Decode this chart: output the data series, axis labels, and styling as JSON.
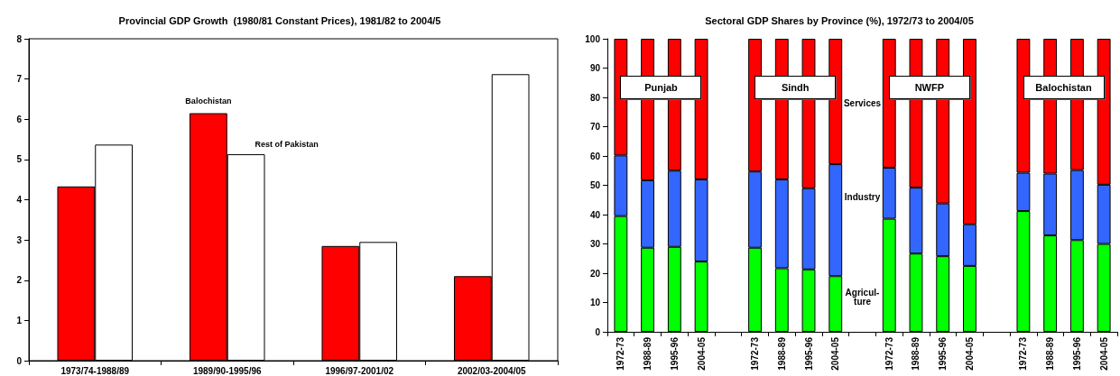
{
  "chart_data": [
    {
      "type": "bar",
      "title": "Provincial GDP Growth  (1980/81 Constant Prices), 1981/82 to 2004/5",
      "categories": [
        "1973/74-1988/89",
        "1989/90-1995/96",
        "1996/97-2001/02",
        "2002/03-2004/05"
      ],
      "series": [
        {
          "name": "Balochistan",
          "color": "#ff0000",
          "values": [
            4.33,
            6.15,
            2.85,
            2.1
          ]
        },
        {
          "name": "Rest of Pakistan",
          "color": "#ffffff",
          "values": [
            5.37,
            5.13,
            2.95,
            7.12
          ]
        }
      ],
      "ylim": [
        0,
        8
      ],
      "yticks": [
        0,
        1,
        2,
        3,
        4,
        5,
        6,
        7,
        8
      ],
      "grid": false,
      "legend": false
    },
    {
      "type": "bar",
      "title": "Sectoral GDP Shares by Province (%), 1972/73 to 2004/05",
      "stacked": true,
      "categories": [
        "1972-73",
        "1988-89",
        "1995-96",
        "2004-05",
        null,
        "1972-73",
        "1988-89",
        "1995-96",
        "2004-05",
        null,
        "1972-73",
        "1988-89",
        "1995-96",
        "2004-05",
        null,
        "1972-73",
        "1988-89",
        "1995-96",
        "2004-05"
      ],
      "series": [
        {
          "name": "Agricul-\nture",
          "color": "#00ff00",
          "values": [
            39.5,
            28.7,
            29,
            24,
            null,
            28.7,
            21.7,
            21.3,
            19,
            null,
            38.6,
            26.7,
            25.8,
            22.5,
            null,
            41.2,
            32.9,
            31.3,
            30
          ]
        },
        {
          "name": "Industry",
          "color": "#3366ff",
          "values": [
            20.7,
            23,
            26,
            28,
            null,
            26,
            30.3,
            27.7,
            38.2,
            null,
            17.4,
            22.5,
            18,
            14.2,
            null,
            13.1,
            21.1,
            23.9,
            20.2
          ]
        },
        {
          "name": "Services",
          "color": "#ff0000",
          "values": [
            39.8,
            48.3,
            45,
            48,
            null,
            45.3,
            48,
            51,
            42.8,
            null,
            44,
            50.8,
            56.2,
            63.3,
            null,
            45.7,
            46,
            44.8,
            49.8
          ]
        }
      ],
      "annotations": [
        "Punjab",
        "Sindh",
        "NWFP",
        "Balochistan"
      ],
      "ylim": [
        0,
        100
      ],
      "yticks": [
        0,
        10,
        20,
        30,
        40,
        50,
        60,
        70,
        80,
        90,
        100
      ],
      "grid": false,
      "legend": false
    }
  ]
}
